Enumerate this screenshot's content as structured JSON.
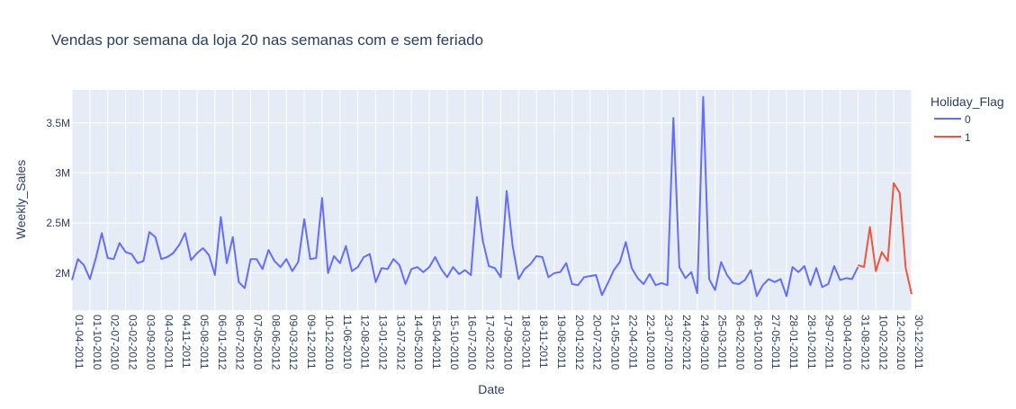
{
  "chart_data": {
    "type": "line",
    "title": "Vendas por semana da loja 20 nas semanas com e sem feriado",
    "xlabel": "Date",
    "ylabel": "Weekly_Sales",
    "ylim": [
      1630000,
      3830000
    ],
    "grid": true,
    "legend_position": "top-right",
    "y_ticks": [
      {
        "value": 2000000,
        "label": "2M"
      },
      {
        "value": 2500000,
        "label": "2.5M"
      },
      {
        "value": 3000000,
        "label": "3M"
      },
      {
        "value": 3500000,
        "label": "3.5M"
      }
    ],
    "x_tick_labels": [
      "01-04-2011",
      "01-10-2010",
      "02-07-2010",
      "03-02-2012",
      "03-09-2010",
      "04-03-2011",
      "04-11-2011",
      "05-08-2011",
      "06-01-2012",
      "06-07-2012",
      "07-05-2010",
      "08-06-2012",
      "09-03-2012",
      "09-12-2011",
      "10-12-2010",
      "11-06-2010",
      "12-08-2011",
      "13-01-2012",
      "13-07-2012",
      "14-05-2010",
      "15-04-2011",
      "15-10-2010",
      "16-07-2010",
      "17-02-2012",
      "17-09-2010",
      "18-03-2011",
      "18-11-2011",
      "19-08-2011",
      "20-01-2012",
      "20-07-2012",
      "21-05-2010",
      "22-04-2011",
      "22-10-2010",
      "23-07-2010",
      "24-02-2012",
      "24-09-2010",
      "25-03-2011",
      "26-02-2010",
      "26-10-2010",
      "27-05-2011",
      "28-01-2011",
      "28-10-2011",
      "29-07-2011",
      "30-04-2010",
      "31-08-2012",
      "10-02-2012",
      "12-02-2010",
      "30-12-2011"
    ],
    "legend": {
      "title": "Holiday_Flag"
    },
    "series": [
      {
        "name": "0",
        "color": "#636efa",
        "values": [
          1930000,
          2140000,
          2080000,
          1940000,
          2150000,
          2400000,
          2150000,
          2140000,
          2300000,
          2210000,
          2190000,
          2100000,
          2120000,
          2410000,
          2360000,
          2140000,
          2160000,
          2200000,
          2280000,
          2400000,
          2130000,
          2200000,
          2250000,
          2180000,
          1980000,
          2560000,
          2100000,
          2360000,
          1910000,
          1850000,
          2140000,
          2140000,
          2040000,
          2230000,
          2120000,
          2060000,
          2140000,
          2020000,
          2110000,
          2540000,
          2140000,
          2150000,
          2750000,
          2000000,
          2170000,
          2100000,
          2270000,
          2020000,
          2060000,
          2160000,
          2190000,
          1910000,
          2050000,
          2040000,
          2140000,
          2080000,
          1890000,
          2040000,
          2060000,
          2010000,
          2060000,
          2160000,
          2040000,
          1960000,
          2060000,
          1990000,
          2030000,
          1980000,
          2760000,
          2320000,
          2070000,
          2050000,
          1960000,
          2820000,
          2270000,
          1940000,
          2040000,
          2090000,
          2170000,
          2160000,
          1960000,
          2000000,
          2010000,
          2100000,
          1890000,
          1880000,
          1960000,
          1970000,
          1980000,
          1780000,
          1900000,
          2030000,
          2110000,
          2310000,
          2050000,
          1950000,
          1890000,
          1990000,
          1880000,
          1900000,
          1880000,
          3550000,
          2060000,
          1950000,
          2010000,
          1800000,
          3760000,
          1940000,
          1830000,
          2110000,
          1980000,
          1900000,
          1890000,
          1930000,
          2030000,
          1770000,
          1880000,
          1940000,
          1910000,
          1940000,
          1770000,
          2060000,
          2010000,
          2070000,
          1880000,
          2050000,
          1860000,
          1890000,
          2070000,
          1930000,
          1950000,
          1940000,
          2060000
        ],
        "x_start": 0
      },
      {
        "name": "1",
        "color": "#ef553b",
        "values": [
          2080000,
          2060000,
          2460000,
          2020000,
          2210000,
          2120000,
          2900000,
          2800000,
          2050000,
          1790000
        ],
        "x_start": 132
      }
    ]
  }
}
